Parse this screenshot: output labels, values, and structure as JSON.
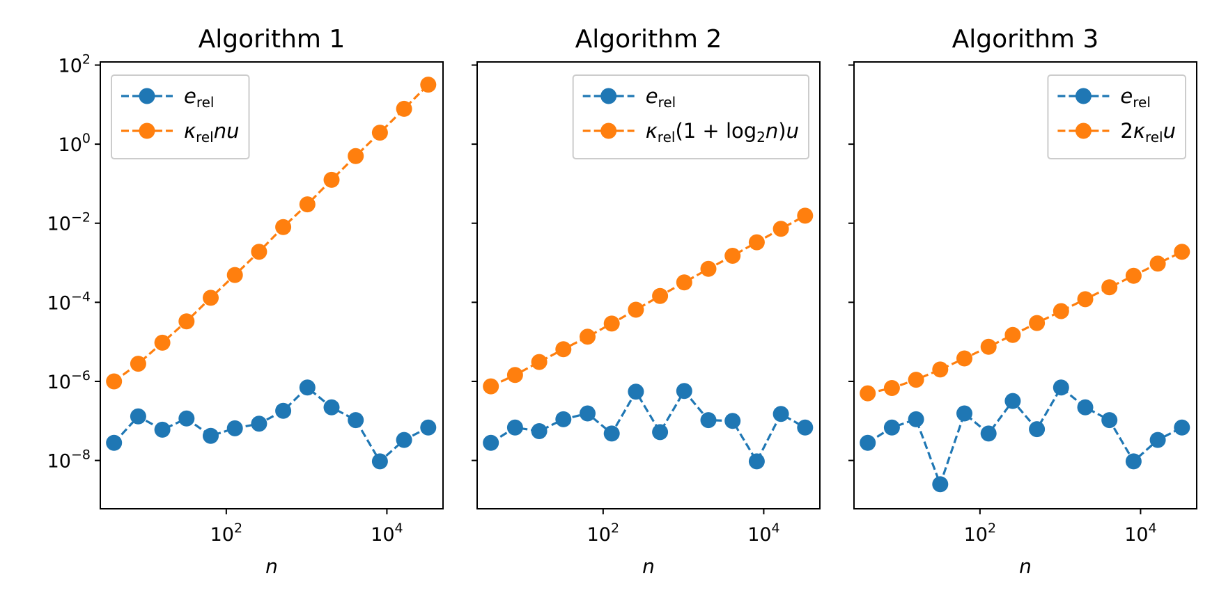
{
  "colors": {
    "blue": "#1f77b4",
    "orange": "#ff7f0e"
  },
  "chart_data": [
    {
      "type": "line",
      "title": "Algorithm 1",
      "xlabel": "n",
      "xscale": "log",
      "yscale": "log",
      "xlim": [
        2.7,
        50000
      ],
      "ylim": [
        6e-10,
        120
      ],
      "x_ticks": [
        {
          "base": "10",
          "exp": "2",
          "value": 100
        },
        {
          "base": "10",
          "exp": "4",
          "value": 10000
        }
      ],
      "y_ticks": [
        {
          "base": "10",
          "exp": "2",
          "value": 100
        },
        {
          "base": "10",
          "exp": "0",
          "value": 1
        },
        {
          "base": "10",
          "exp": "−2",
          "value": 0.01
        },
        {
          "base": "10",
          "exp": "−4",
          "value": 0.0001
        },
        {
          "base": "10",
          "exp": "−6",
          "value": 1e-06
        },
        {
          "base": "10",
          "exp": "−8",
          "value": 1e-08
        }
      ],
      "show_y_tick_labels": true,
      "legend_position": "upper-left",
      "x": [
        4,
        8,
        16,
        32,
        64,
        128,
        256,
        512,
        1024,
        2048,
        4096,
        8192,
        16384,
        32768
      ],
      "series": [
        {
          "color": "blue",
          "legend": {
            "parts": [
              [
                "it",
                "e"
              ],
              [
                "sub",
                "rel"
              ]
            ]
          },
          "values": [
            2.8e-08,
            1.3e-07,
            6e-08,
            1.15e-07,
            4.2e-08,
            6.5e-08,
            8.5e-08,
            1.8e-07,
            7e-07,
            2.2e-07,
            1.05e-07,
            9.5e-09,
            3.3e-08,
            6.8e-08
          ]
        },
        {
          "color": "orange",
          "legend": {
            "parts": [
              [
                "it",
                "κ"
              ],
              [
                "sub",
                "rel"
              ],
              [
                "it",
                "nu"
              ]
            ]
          },
          "values": [
            1e-06,
            2.8e-06,
            9.5e-06,
            3.3e-05,
            0.00013,
            0.00049,
            0.0019,
            0.008,
            0.03,
            0.125,
            0.5,
            1.95,
            7.8,
            32
          ]
        }
      ]
    },
    {
      "type": "line",
      "title": "Algorithm 2",
      "xlabel": "n",
      "xscale": "log",
      "yscale": "log",
      "xlim": [
        2.7,
        50000
      ],
      "ylim": [
        6e-10,
        120
      ],
      "x_ticks": [
        {
          "base": "10",
          "exp": "2",
          "value": 100
        },
        {
          "base": "10",
          "exp": "4",
          "value": 10000
        }
      ],
      "y_ticks": [
        {
          "base": "10",
          "exp": "2",
          "value": 100
        },
        {
          "base": "10",
          "exp": "0",
          "value": 1
        },
        {
          "base": "10",
          "exp": "−2",
          "value": 0.01
        },
        {
          "base": "10",
          "exp": "−4",
          "value": 0.0001
        },
        {
          "base": "10",
          "exp": "−6",
          "value": 1e-06
        },
        {
          "base": "10",
          "exp": "−8",
          "value": 1e-08
        }
      ],
      "show_y_tick_labels": false,
      "legend_position": "upper-right",
      "x": [
        4,
        8,
        16,
        32,
        64,
        128,
        256,
        512,
        1024,
        2048,
        4096,
        8192,
        16384,
        32768
      ],
      "series": [
        {
          "color": "blue",
          "legend": {
            "parts": [
              [
                "it",
                "e"
              ],
              [
                "sub",
                "rel"
              ]
            ]
          },
          "values": [
            2.8e-08,
            6.8e-08,
            5.5e-08,
            1.1e-07,
            1.55e-07,
            4.8e-08,
            5.5e-07,
            5.2e-08,
            5.7e-07,
            1.05e-07,
            1e-07,
            9.5e-09,
            1.5e-07,
            6.8e-08
          ]
        },
        {
          "color": "orange",
          "legend": {
            "parts": [
              [
                "it",
                "κ"
              ],
              [
                "sub",
                "rel"
              ],
              [
                "n",
                "(1 + log"
              ],
              [
                "sub",
                "2"
              ],
              [
                "it",
                "n"
              ],
              [
                "n",
                ")"
              ],
              [
                "it",
                "u"
              ]
            ]
          },
          "values": [
            7.5e-07,
            1.45e-06,
            3.1e-06,
            6.5e-06,
            1.35e-05,
            2.9e-05,
            6.5e-05,
            0.000145,
            0.00032,
            0.0007,
            0.0015,
            0.0033,
            0.0072,
            0.0155
          ]
        }
      ]
    },
    {
      "type": "line",
      "title": "Algorithm 3",
      "xlabel": "n",
      "xscale": "log",
      "yscale": "log",
      "xlim": [
        2.7,
        50000
      ],
      "ylim": [
        6e-10,
        120
      ],
      "x_ticks": [
        {
          "base": "10",
          "exp": "2",
          "value": 100
        },
        {
          "base": "10",
          "exp": "4",
          "value": 10000
        }
      ],
      "y_ticks": [
        {
          "base": "10",
          "exp": "2",
          "value": 100
        },
        {
          "base": "10",
          "exp": "0",
          "value": 1
        },
        {
          "base": "10",
          "exp": "−2",
          "value": 0.01
        },
        {
          "base": "10",
          "exp": "−4",
          "value": 0.0001
        },
        {
          "base": "10",
          "exp": "−6",
          "value": 1e-06
        },
        {
          "base": "10",
          "exp": "−8",
          "value": 1e-08
        }
      ],
      "show_y_tick_labels": false,
      "legend_position": "upper-right",
      "x": [
        4,
        8,
        16,
        32,
        64,
        128,
        256,
        512,
        1024,
        2048,
        4096,
        8192,
        16384,
        32768
      ],
      "series": [
        {
          "color": "blue",
          "legend": {
            "parts": [
              [
                "it",
                "e"
              ],
              [
                "sub",
                "rel"
              ]
            ]
          },
          "values": [
            2.8e-08,
            6.8e-08,
            1.1e-07,
            2.5e-09,
            1.55e-07,
            4.8e-08,
            3.2e-07,
            6.2e-08,
            7e-07,
            2.2e-07,
            1.05e-07,
            9.5e-09,
            3.3e-08,
            6.8e-08
          ]
        },
        {
          "color": "orange",
          "legend": {
            "parts": [
              [
                "n",
                "2"
              ],
              [
                "it",
                "κ"
              ],
              [
                "sub",
                "rel"
              ],
              [
                "it",
                "u"
              ]
            ]
          },
          "values": [
            5e-07,
            6.8e-07,
            1.1e-06,
            2e-06,
            3.8e-06,
            7.5e-06,
            1.5e-05,
            3e-05,
            6e-05,
            0.00012,
            0.00024,
            0.00047,
            0.00095,
            0.0019
          ]
        }
      ]
    }
  ]
}
